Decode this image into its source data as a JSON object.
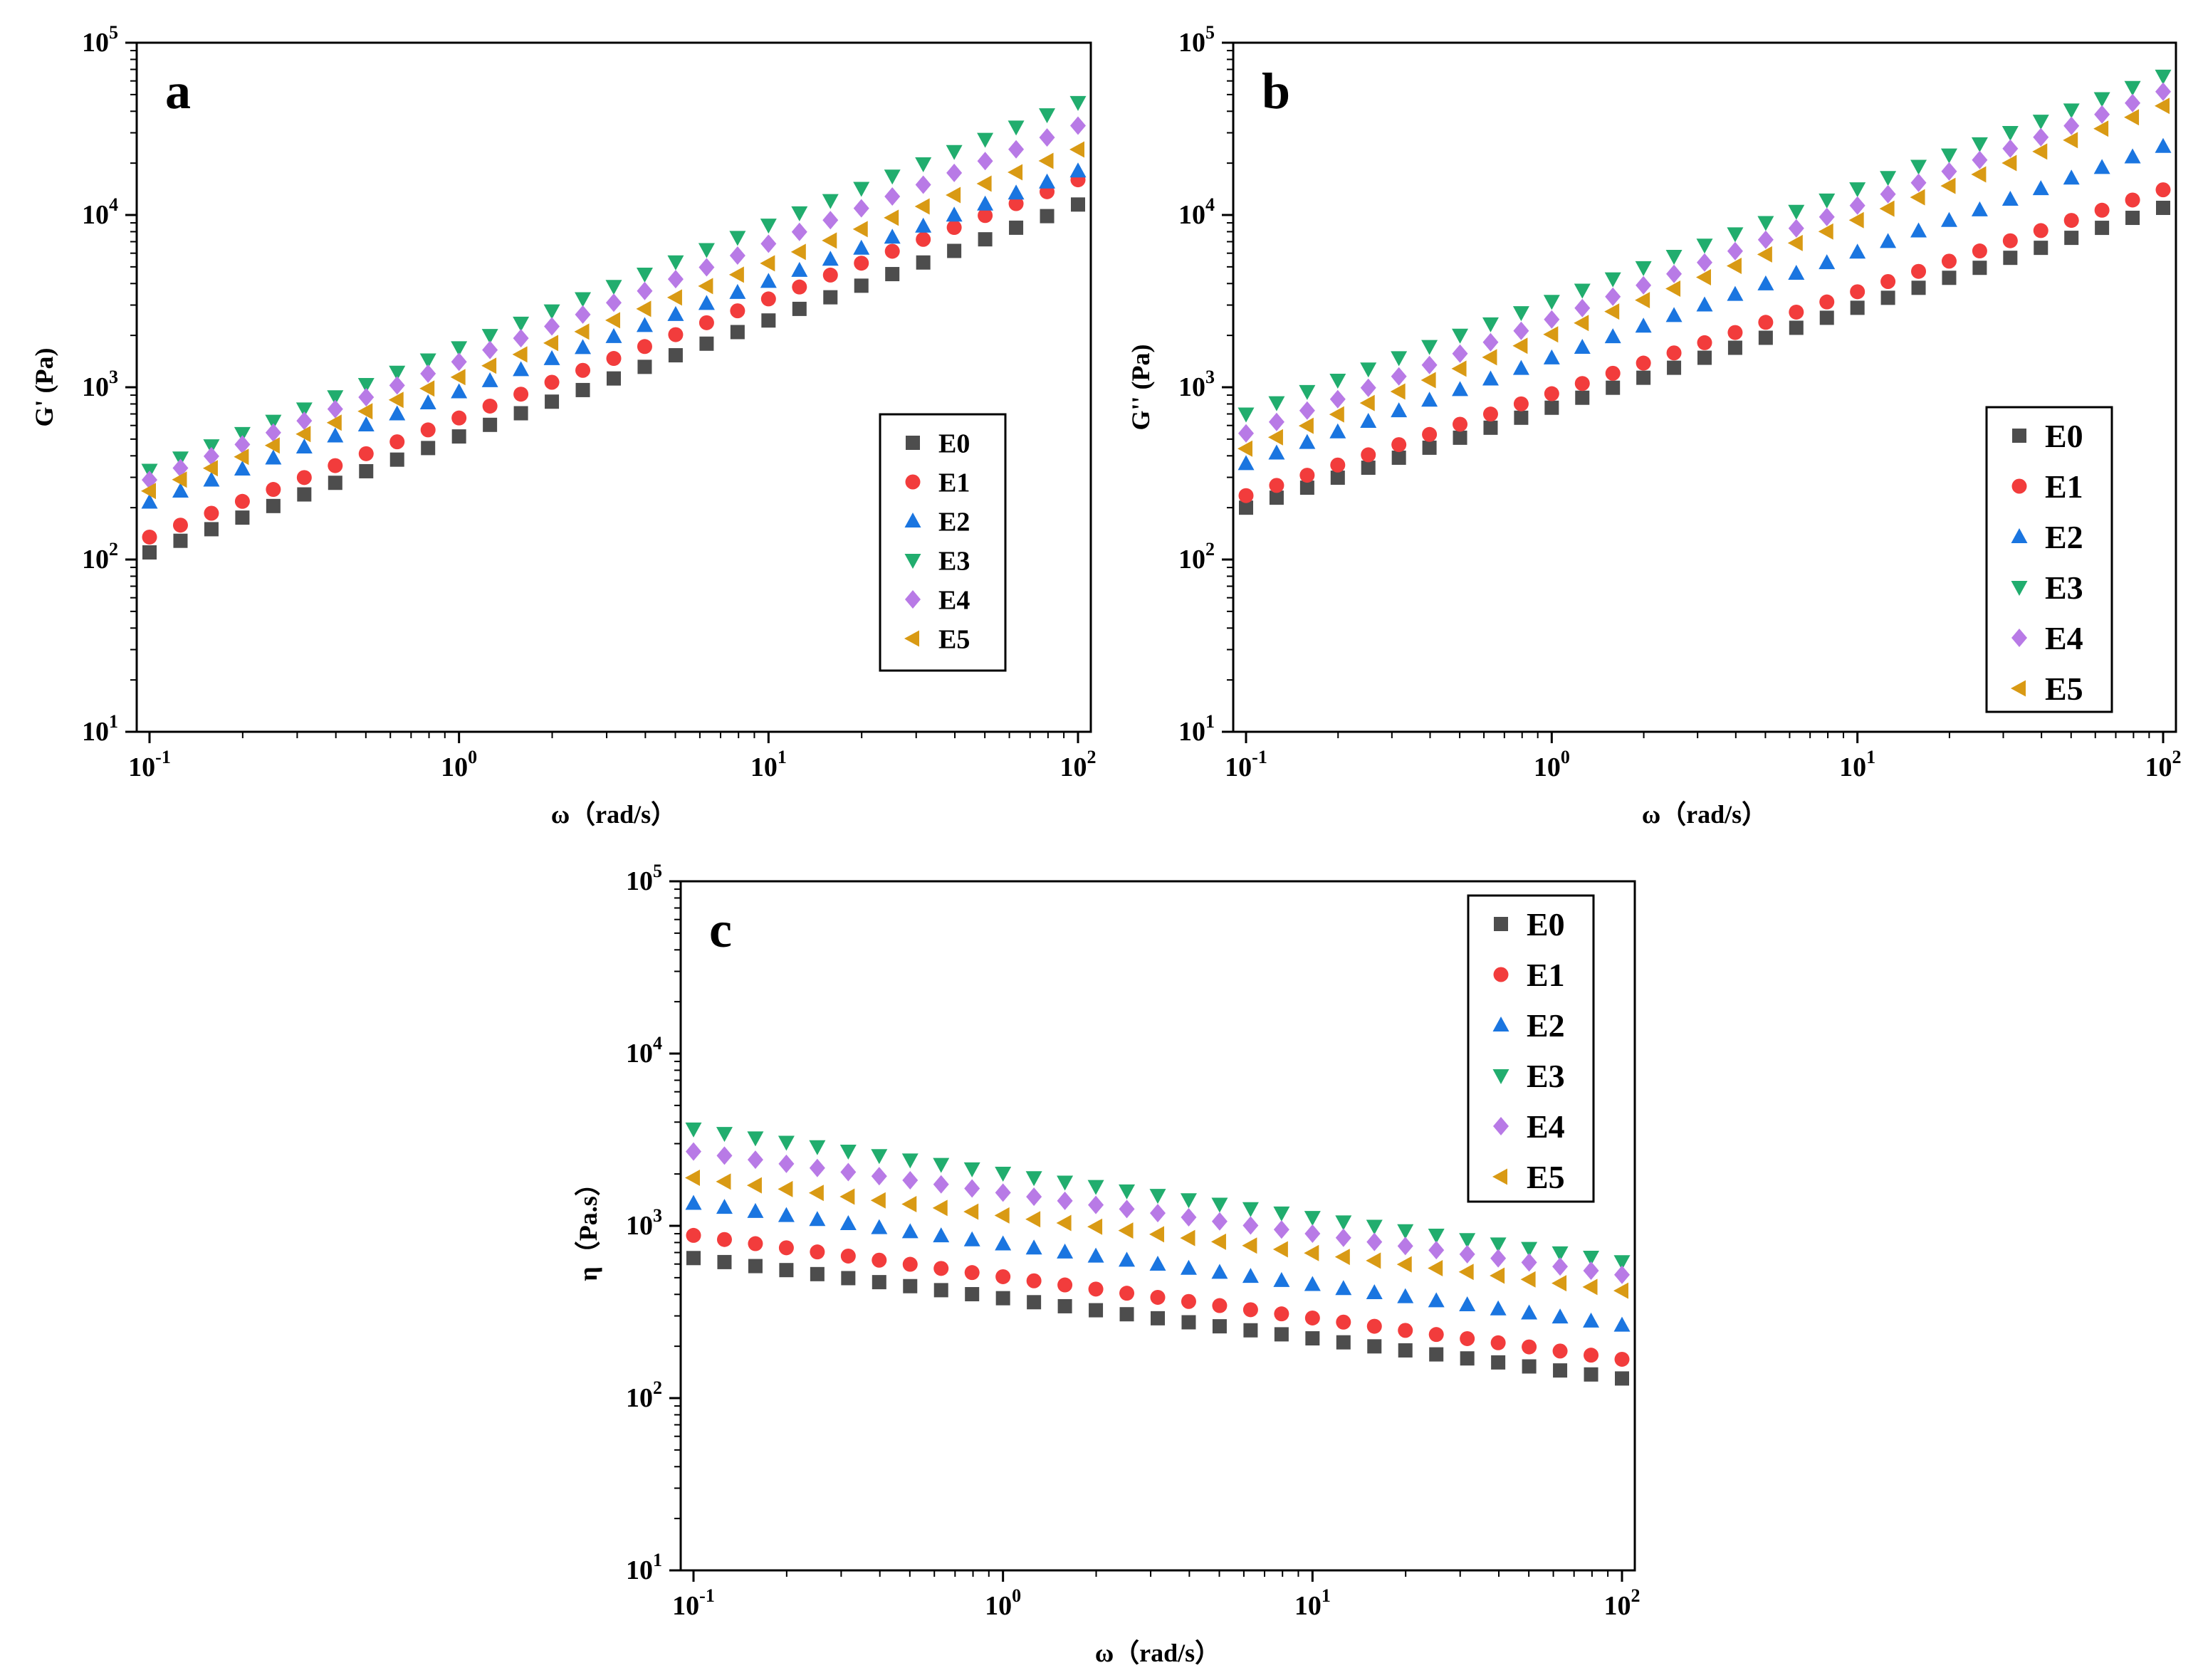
{
  "colors": {
    "E0": "#4d4d4d",
    "E1": "#f23c3c",
    "E2": "#1a75e0",
    "E3": "#21ad6e",
    "E4": "#b87ae6",
    "E5": "#d99a14"
  },
  "chart_data": [
    {
      "panel": "a",
      "type": "scatter",
      "xscale": "log",
      "yscale": "log",
      "xlabel": "ω（rad/s）",
      "ylabel": "G' (Pa)",
      "xlim": [
        0.1,
        100
      ],
      "ylim": [
        10,
        100000
      ],
      "xticks": [
        {
          "base": "10",
          "exp": "-1"
        },
        {
          "base": "10",
          "exp": "0"
        },
        {
          "base": "10",
          "exp": "1"
        },
        {
          "base": "10",
          "exp": "2"
        }
      ],
      "yticks": [
        {
          "base": "10",
          "exp": "1"
        },
        {
          "base": "10",
          "exp": "2"
        },
        {
          "base": "10",
          "exp": "3"
        },
        {
          "base": "10",
          "exp": "4"
        },
        {
          "base": "10",
          "exp": "5"
        }
      ],
      "legend_position": "lower-right",
      "series": [
        {
          "name": "E0",
          "marker": "square",
          "y_start": 110,
          "y_end": 11500
        },
        {
          "name": "E1",
          "marker": "circle",
          "y_start": 135,
          "y_end": 16000
        },
        {
          "name": "E2",
          "marker": "triangle-up",
          "y_start": 215,
          "y_end": 18000
        },
        {
          "name": "E3",
          "marker": "triangle-down",
          "y_start": 330,
          "y_end": 45000
        },
        {
          "name": "E4",
          "marker": "diamond",
          "y_start": 290,
          "y_end": 33000
        },
        {
          "name": "E5",
          "marker": "triangle-left",
          "y_start": 250,
          "y_end": 24000
        }
      ]
    },
    {
      "panel": "b",
      "type": "scatter",
      "xscale": "log",
      "yscale": "log",
      "xlabel": "ω（rad/s）",
      "ylabel": "G'' (Pa)",
      "xlim": [
        0.1,
        100
      ],
      "ylim": [
        10,
        100000
      ],
      "xticks": [
        {
          "base": "10",
          "exp": "-1"
        },
        {
          "base": "10",
          "exp": "0"
        },
        {
          "base": "10",
          "exp": "1"
        },
        {
          "base": "10",
          "exp": "2"
        }
      ],
      "yticks": [
        {
          "base": "10",
          "exp": "1"
        },
        {
          "base": "10",
          "exp": "2"
        },
        {
          "base": "10",
          "exp": "3"
        },
        {
          "base": "10",
          "exp": "4"
        },
        {
          "base": "10",
          "exp": "5"
        }
      ],
      "legend_position": "lower-right",
      "series": [
        {
          "name": "E0",
          "marker": "square",
          "y_start": 200,
          "y_end": 11000
        },
        {
          "name": "E1",
          "marker": "circle",
          "y_start": 235,
          "y_end": 14000
        },
        {
          "name": "E2",
          "marker": "triangle-up",
          "y_start": 360,
          "y_end": 25000
        },
        {
          "name": "E3",
          "marker": "triangle-down",
          "y_start": 700,
          "y_end": 64000
        },
        {
          "name": "E4",
          "marker": "diamond",
          "y_start": 540,
          "y_end": 52000
        },
        {
          "name": "E5",
          "marker": "triangle-left",
          "y_start": 440,
          "y_end": 43000
        }
      ]
    },
    {
      "panel": "c",
      "type": "scatter",
      "xscale": "log",
      "yscale": "log",
      "xlabel": "ω（rad/s）",
      "ylabel": "η（Pa.s）",
      "xlim": [
        0.1,
        100
      ],
      "ylim": [
        10,
        100000
      ],
      "xticks": [
        {
          "base": "10",
          "exp": "-1"
        },
        {
          "base": "10",
          "exp": "0"
        },
        {
          "base": "10",
          "exp": "1"
        },
        {
          "base": "10",
          "exp": "2"
        }
      ],
      "yticks": [
        {
          "base": "10",
          "exp": "1"
        },
        {
          "base": "10",
          "exp": "2"
        },
        {
          "base": "10",
          "exp": "3"
        },
        {
          "base": "10",
          "exp": "4"
        },
        {
          "base": "10",
          "exp": "5"
        }
      ],
      "legend_position": "top-right",
      "series": [
        {
          "name": "E0",
          "marker": "square",
          "y_start": 650,
          "y_end": 130
        },
        {
          "name": "E1",
          "marker": "circle",
          "y_start": 880,
          "y_end": 168
        },
        {
          "name": "E2",
          "marker": "triangle-up",
          "y_start": 1350,
          "y_end": 265
        },
        {
          "name": "E3",
          "marker": "triangle-down",
          "y_start": 3650,
          "y_end": 620
        },
        {
          "name": "E4",
          "marker": "diamond",
          "y_start": 2700,
          "y_end": 520
        },
        {
          "name": "E5",
          "marker": "triangle-left",
          "y_start": 1900,
          "y_end": 420
        }
      ]
    }
  ]
}
